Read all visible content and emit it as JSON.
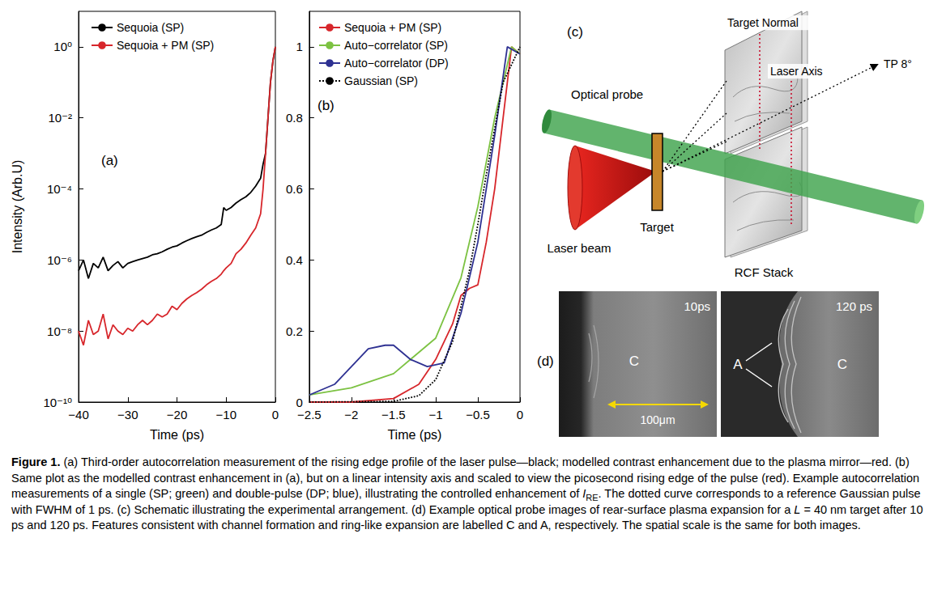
{
  "chart_data": [
    {
      "type": "line",
      "annotations": [
        "(a)"
      ],
      "x_label": "Time (ps)",
      "y_label": "Intensity (Arb.U)",
      "log": "y",
      "grid": false,
      "legend": "upper left",
      "xlim": [
        -40,
        0
      ],
      "xticks": [
        {
          "value": -40,
          "label": "−40"
        },
        {
          "value": -30,
          "label": "−30"
        },
        {
          "value": -20,
          "label": "−20"
        },
        {
          "value": -10,
          "label": "−10"
        },
        0
      ],
      "ylim": [
        1e-10,
        10
      ],
      "yticks": [
        {
          "value": 1e-10,
          "label": "10⁻¹⁰"
        },
        {
          "value": 1e-08,
          "label": "10⁻⁸"
        },
        {
          "value": 1e-06,
          "label": "10⁻⁶"
        },
        {
          "value": 0.0001,
          "label": "10⁻⁴"
        },
        {
          "value": 0.01,
          "label": "10⁻²"
        },
        {
          "value": 1,
          "label": "10⁰"
        }
      ],
      "x": [
        -40,
        -39,
        -38,
        -37,
        -36,
        -35,
        -34,
        -33,
        -32,
        -31,
        -30,
        -29,
        -28,
        -27,
        -26,
        -25,
        -24,
        -23,
        -22,
        -21,
        -20,
        -19,
        -18,
        -17,
        -16,
        -15,
        -14,
        -13,
        -12,
        -11,
        -10.5,
        -10,
        -9,
        -8,
        -7,
        -6,
        -5,
        -4,
        -3,
        -2.5,
        -2,
        -1.5,
        -1,
        -0.5,
        0
      ],
      "series": [
        {
          "name": "Sequoia (SP)",
          "color": "#000000",
          "values": [
            5e-07,
            1e-06,
            3e-07,
            8e-07,
            6e-07,
            1.2e-06,
            5e-07,
            7e-07,
            9e-07,
            6e-07,
            8e-07,
            9e-07,
            1e-06,
            1.1e-06,
            1.2e-06,
            1.4e-06,
            1.5e-06,
            1.7e-06,
            2e-06,
            2.3e-06,
            2.5e-06,
            3e-06,
            3.5e-06,
            4e-06,
            4.5e-06,
            5e-06,
            6e-06,
            7e-06,
            8e-06,
            1e-05,
            3e-05,
            2.5e-05,
            3e-05,
            4e-05,
            5e-05,
            6e-05,
            8e-05,
            0.00012,
            0.0002,
            0.0005,
            0.001,
            0.01,
            0.1,
            0.4,
            1
          ]
        },
        {
          "name": "Sequoia + PM (SP)",
          "color": "#d7262b",
          "values": [
            1e-08,
            4e-09,
            2e-08,
            8e-09,
            1e-08,
            3e-08,
            6e-09,
            1.5e-08,
            1e-08,
            8e-09,
            1.2e-08,
            1e-08,
            1.5e-08,
            2e-08,
            1.5e-08,
            2e-08,
            3e-08,
            2.5e-08,
            3e-08,
            5e-08,
            4e-08,
            6e-08,
            8e-08,
            1e-07,
            1.2e-07,
            1.5e-07,
            2e-07,
            2.5e-07,
            3e-07,
            4e-07,
            5e-07,
            6e-07,
            8e-07,
            1.5e-06,
            2e-06,
            3e-06,
            5e-06,
            8e-06,
            2e-05,
            0.0001,
            0.001,
            0.01,
            0.1,
            0.4,
            1
          ]
        }
      ]
    },
    {
      "type": "line",
      "annotations": [
        "(b)"
      ],
      "x_label": "Time (ps)",
      "grid": false,
      "legend": "upper left",
      "xlim": [
        -2.5,
        0
      ],
      "xticks": [
        {
          "value": -2.5,
          "label": "−2.5"
        },
        {
          "value": -2,
          "label": "−2"
        },
        {
          "value": -1.5,
          "label": "−1.5"
        },
        {
          "value": -1,
          "label": "−1"
        },
        {
          "value": -0.5,
          "label": "−0.5"
        },
        0
      ],
      "ylim": [
        0,
        1.1
      ],
      "yticks": [
        0,
        0.2,
        0.4,
        0.6,
        0.8,
        1
      ],
      "series": [
        {
          "name": "Sequoia + PM (SP)",
          "color": "#d7262b",
          "x": [
            -2.5,
            -2,
            -1.5,
            -1.2,
            -1,
            -0.8,
            -0.7,
            -0.6,
            -0.5,
            -0.4,
            -0.3,
            -0.2,
            -0.1,
            0
          ],
          "values": [
            0,
            0,
            0.01,
            0.05,
            0.12,
            0.22,
            0.3,
            0.32,
            0.33,
            0.45,
            0.6,
            0.8,
            1,
            0.98
          ]
        },
        {
          "name": "Auto−correlator (SP)",
          "color": "#7cc242",
          "x": [
            -2.5,
            -2,
            -1.5,
            -1,
            -0.7,
            -0.5,
            -0.3,
            -0.1,
            0
          ],
          "values": [
            0.02,
            0.04,
            0.08,
            0.18,
            0.35,
            0.55,
            0.8,
            1,
            0.98
          ]
        },
        {
          "name": "Auto−correlator (DP)",
          "color": "#2e3192",
          "x": [
            -2.5,
            -2.2,
            -2,
            -1.8,
            -1.6,
            -1.5,
            -1.3,
            -1.1,
            -0.9,
            -0.7,
            -0.5,
            -0.3,
            -0.15,
            0
          ],
          "values": [
            0.02,
            0.05,
            0.1,
            0.15,
            0.16,
            0.16,
            0.12,
            0.1,
            0.11,
            0.25,
            0.45,
            0.75,
            1,
            0.98
          ]
        },
        {
          "name": "Gaussian (SP)",
          "color": "#000000",
          "line_style": "dotted",
          "x": [
            -2.5,
            -1.5,
            -1.2,
            -1,
            -0.8,
            -0.6,
            -0.5,
            -0.4,
            -0.2,
            0
          ],
          "values": [
            0,
            0.002,
            0.018,
            0.063,
            0.17,
            0.37,
            0.5,
            0.64,
            0.9,
            1
          ]
        }
      ]
    }
  ],
  "schematic": {
    "panel": "(c)",
    "labels": {
      "target_normal": "Target Normal",
      "laser_axis": "Laser Axis",
      "tp": "TP 8°",
      "optical_probe": "Optical probe",
      "laser_beam": "Laser beam",
      "target": "Target",
      "rcf_stack": "RCF Stack"
    }
  },
  "probe_images": {
    "panel": "(d)",
    "images": [
      {
        "time": "10ps",
        "labels": [
          "C"
        ],
        "scale_bar": "100μm"
      },
      {
        "time": "120 ps",
        "labels": [
          "A",
          "C"
        ]
      }
    ]
  },
  "caption": [
    {
      "text": "Figure 1.",
      "style": "bold"
    },
    {
      "text": " (a) Third-order autocorrelation measurement of the rising edge profile of the laser pulse—black; modelled contrast enhancement due to the plasma mirror—red. (b) Same plot as the modelled contrast enhancement in (a), but on a linear intensity axis and scaled to view the picosecond rising edge of the pulse (red). Example autocorrelation measurements of a single (SP; green) and double-pulse (DP; blue), illustrating the controlled enhancement of "
    },
    {
      "text": "I",
      "style": "italic"
    },
    {
      "text": "RE",
      "style": "sub"
    },
    {
      "text": ". The dotted curve corresponds to a reference Gaussian pulse with FWHM of 1 ps. (c) Schematic illustrating the experimental arrangement. (d) Example optical probe images of rear-surface plasma expansion for a "
    },
    {
      "text": "L",
      "style": "italic"
    },
    {
      "text": " = 40 nm target after 10 ps and 120 ps. Features consistent with channel formation and ring-like expansion are labelled C and A, respectively. The spatial scale is the same for both images."
    }
  ]
}
